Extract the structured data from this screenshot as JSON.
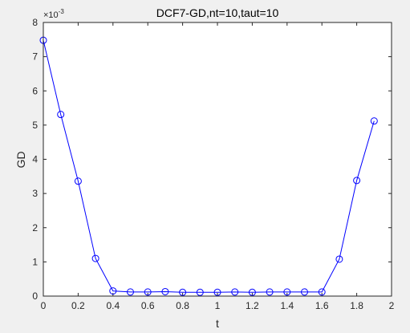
{
  "chart_data": {
    "type": "line",
    "title": "DCF7-GD,nt=10,taut=10",
    "xlabel": "t",
    "ylabel": "GD",
    "y_exponent_label": "×10",
    "y_exponent_power": "-3",
    "xlim": [
      0,
      2
    ],
    "ylim": [
      0,
      0.008
    ],
    "x_ticks": [
      0,
      0.2,
      0.4,
      0.6,
      0.8,
      1,
      1.2,
      1.4,
      1.6,
      1.8,
      2
    ],
    "x_tick_labels": [
      "0",
      "0.2",
      "0.4",
      "0.6",
      "0.8",
      "1",
      "1.2",
      "1.4",
      "1.6",
      "1.8",
      "2"
    ],
    "y_ticks": [
      0,
      0.001,
      0.002,
      0.003,
      0.004,
      0.005,
      0.006,
      0.007,
      0.008
    ],
    "y_tick_labels": [
      "0",
      "1",
      "2",
      "3",
      "4",
      "5",
      "6",
      "7",
      "8"
    ],
    "grid": false,
    "series": [
      {
        "color": "#0000ff",
        "marker": "circle",
        "x": [
          0,
          0.1,
          0.2,
          0.3,
          0.4,
          0.5,
          0.6,
          0.7,
          0.8,
          0.9,
          1.0,
          1.1,
          1.2,
          1.3,
          1.4,
          1.5,
          1.6,
          1.7,
          1.8,
          1.9
        ],
        "y": [
          0.00748,
          0.00531,
          0.00336,
          0.0011,
          0.00015,
          0.00012,
          0.00012,
          0.00013,
          0.00011,
          0.00011,
          0.00011,
          0.00012,
          0.00011,
          0.00012,
          0.00012,
          0.00012,
          0.00012,
          0.00108,
          0.00338,
          0.00512
        ]
      }
    ]
  }
}
